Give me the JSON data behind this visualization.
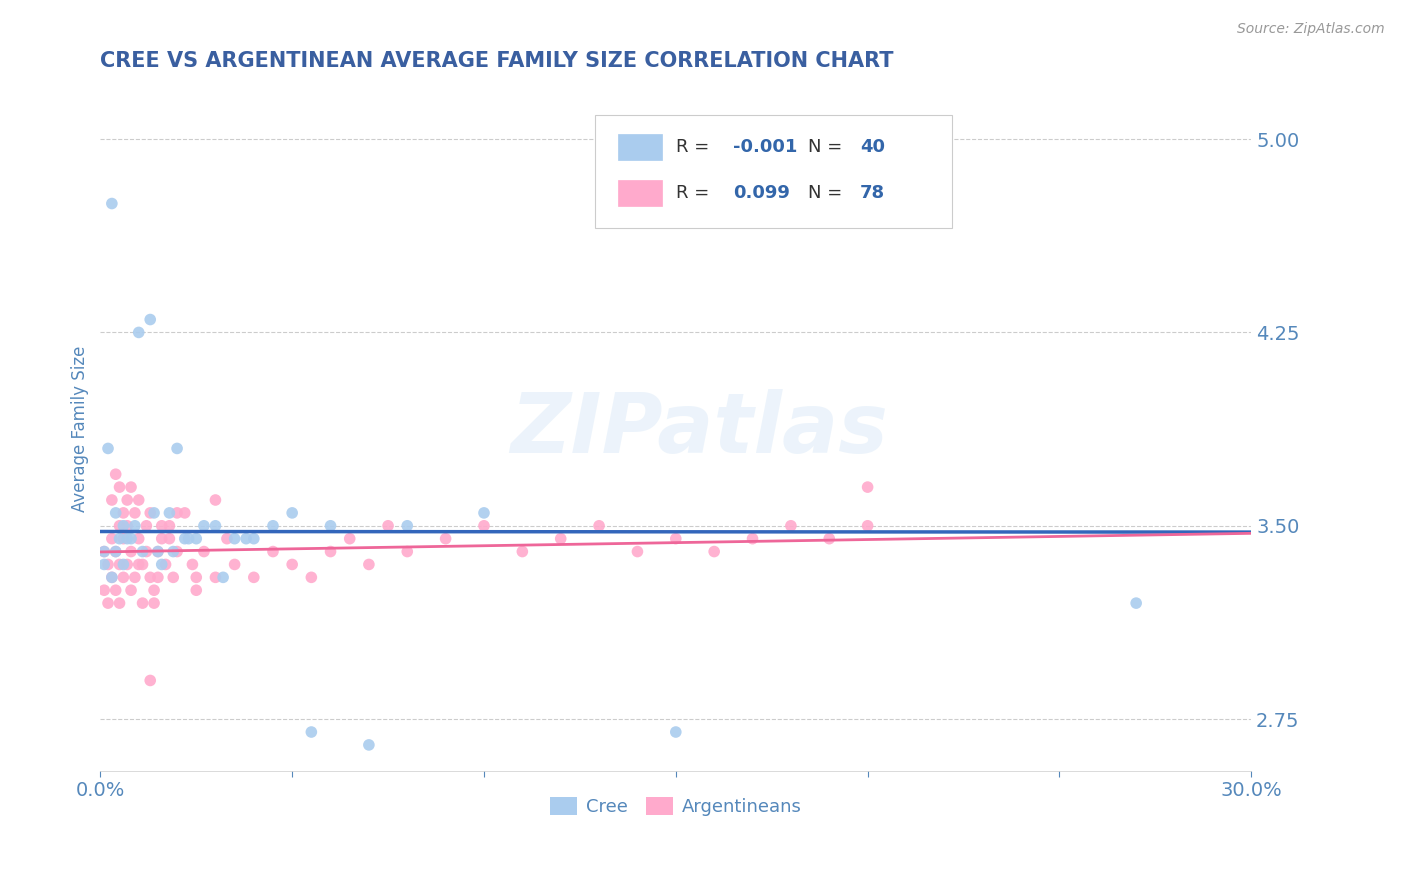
{
  "title": "CREE VS ARGENTINEAN AVERAGE FAMILY SIZE CORRELATION CHART",
  "source": "Source: ZipAtlas.com",
  "ylabel": "Average Family Size",
  "xlim": [
    0.0,
    0.3
  ],
  "ylim": [
    2.55,
    5.2
  ],
  "yticks": [
    2.75,
    3.5,
    4.25,
    5.0
  ],
  "xticks": [
    0.0,
    0.05,
    0.1,
    0.15,
    0.2,
    0.25,
    0.3
  ],
  "title_color": "#3a5fa0",
  "axis_color": "#5588bb",
  "background_color": "#ffffff",
  "grid_color": "#cccccc",
  "cree_color": "#aaccee",
  "argentinean_color": "#ffaacc",
  "cree_line_color": "#3366bb",
  "argentinean_line_color": "#ee6699",
  "legend_text_color": "#3366aa",
  "legend_r_cree": "-0.001",
  "legend_n_cree": "40",
  "legend_r_arg": "0.099",
  "legend_n_arg": "78",
  "watermark": "ZIPatlas",
  "cree_points_x": [
    0.001,
    0.003,
    0.004,
    0.005,
    0.006,
    0.008,
    0.01,
    0.013,
    0.015,
    0.018,
    0.02,
    0.022,
    0.025,
    0.03,
    0.035,
    0.04,
    0.05,
    0.06,
    0.08,
    0.27,
    0.001,
    0.002,
    0.003,
    0.004,
    0.006,
    0.007,
    0.009,
    0.011,
    0.014,
    0.016,
    0.019,
    0.023,
    0.027,
    0.032,
    0.038,
    0.045,
    0.055,
    0.07,
    0.1,
    0.15
  ],
  "cree_points_y": [
    3.4,
    4.75,
    3.55,
    3.45,
    3.5,
    3.45,
    4.25,
    4.3,
    3.4,
    3.55,
    3.8,
    3.45,
    3.45,
    3.5,
    3.45,
    3.45,
    3.55,
    3.5,
    3.5,
    3.2,
    3.35,
    3.8,
    3.3,
    3.4,
    3.35,
    3.45,
    3.5,
    3.4,
    3.55,
    3.35,
    3.4,
    3.45,
    3.5,
    3.3,
    3.45,
    3.5,
    2.7,
    2.65,
    3.55,
    2.7
  ],
  "arg_points_x": [
    0.001,
    0.001,
    0.002,
    0.002,
    0.003,
    0.003,
    0.004,
    0.004,
    0.005,
    0.005,
    0.005,
    0.006,
    0.006,
    0.007,
    0.007,
    0.008,
    0.008,
    0.009,
    0.01,
    0.01,
    0.011,
    0.012,
    0.013,
    0.013,
    0.014,
    0.015,
    0.015,
    0.016,
    0.017,
    0.018,
    0.019,
    0.02,
    0.022,
    0.024,
    0.025,
    0.027,
    0.03,
    0.033,
    0.035,
    0.04,
    0.045,
    0.05,
    0.055,
    0.06,
    0.065,
    0.07,
    0.075,
    0.08,
    0.09,
    0.1,
    0.11,
    0.12,
    0.13,
    0.14,
    0.15,
    0.16,
    0.17,
    0.18,
    0.19,
    0.2,
    0.003,
    0.004,
    0.005,
    0.006,
    0.007,
    0.008,
    0.009,
    0.01,
    0.011,
    0.012,
    0.013,
    0.014,
    0.016,
    0.018,
    0.02,
    0.025,
    0.03,
    0.2
  ],
  "arg_points_y": [
    3.4,
    3.25,
    3.35,
    3.2,
    3.45,
    3.3,
    3.4,
    3.25,
    3.35,
    3.2,
    3.5,
    3.3,
    3.45,
    3.35,
    3.5,
    3.25,
    3.4,
    3.3,
    3.35,
    3.45,
    3.2,
    3.4,
    3.3,
    3.55,
    3.25,
    3.4,
    3.3,
    3.45,
    3.35,
    3.5,
    3.3,
    3.4,
    3.55,
    3.35,
    3.25,
    3.4,
    3.3,
    3.45,
    3.35,
    3.3,
    3.4,
    3.35,
    3.3,
    3.4,
    3.45,
    3.35,
    3.5,
    3.4,
    3.45,
    3.5,
    3.4,
    3.45,
    3.5,
    3.4,
    3.45,
    3.4,
    3.45,
    3.5,
    3.45,
    3.5,
    3.6,
    3.7,
    3.65,
    3.55,
    3.6,
    3.65,
    3.55,
    3.6,
    3.35,
    3.5,
    2.9,
    3.2,
    3.5,
    3.45,
    3.55,
    3.3,
    3.6,
    3.65
  ]
}
